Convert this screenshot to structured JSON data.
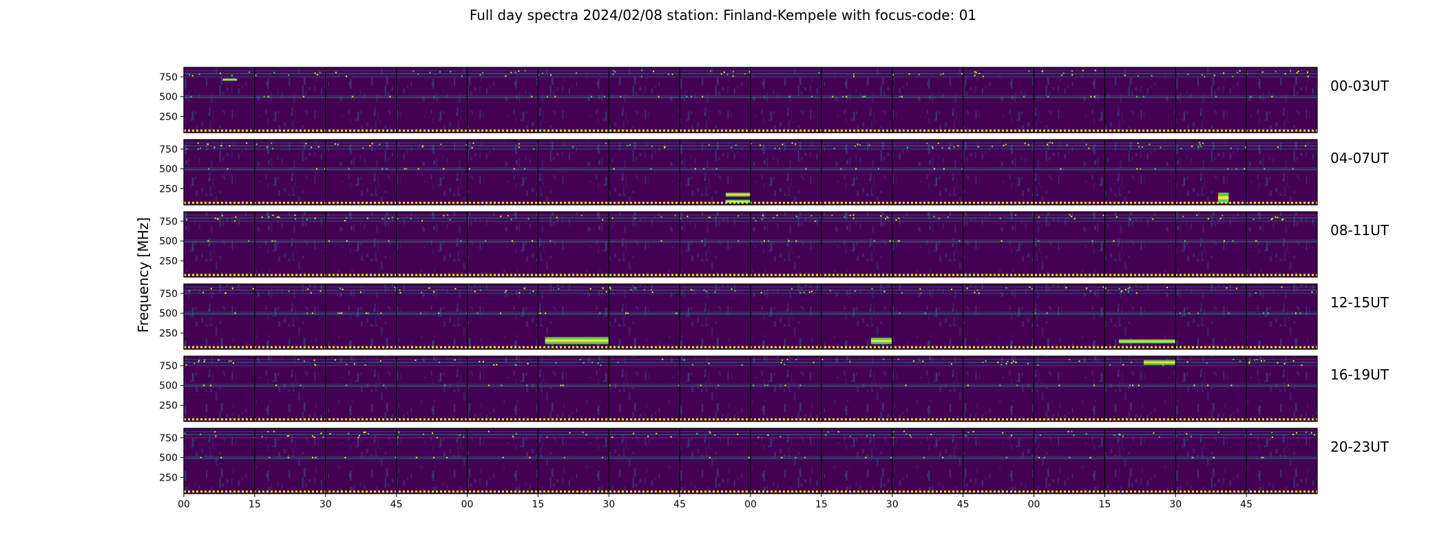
{
  "chart_data": {
    "type": "heatmap",
    "title": "Full day spectra 2024/02/08 station: Finland-Kempele with focus-code: 01",
    "ylabel": "Frequency [MHz]",
    "xlabel": "",
    "y_ticks": [
      750,
      500,
      250
    ],
    "y_range_mhz": [
      45,
      870
    ],
    "x_tick_labels": [
      "00",
      "15",
      "30",
      "45",
      "00",
      "15",
      "30",
      "45",
      "00",
      "15",
      "30",
      "45",
      "00",
      "15",
      "30",
      "45"
    ],
    "panels_per_row": 16,
    "minutes_per_panel": 15,
    "rows": [
      {
        "label": "00-03UT",
        "bursts": [
          {
            "panel": 0,
            "t0": 0.55,
            "t1": 0.75,
            "f0": 700,
            "f1": 730
          }
        ]
      },
      {
        "label": "04-07UT",
        "bursts": [
          {
            "panel": 7,
            "t0": 0.65,
            "t1": 1.0,
            "f0": 150,
            "f1": 200
          },
          {
            "panel": 7,
            "t0": 0.65,
            "t1": 1.0,
            "f0": 70,
            "f1": 110
          },
          {
            "panel": 14,
            "t0": 0.6,
            "t1": 0.75,
            "f0": 70,
            "f1": 200
          }
        ]
      },
      {
        "label": "08-11UT",
        "bursts": []
      },
      {
        "label": "12-15UT",
        "bursts": [
          {
            "panel": 5,
            "t0": 0.1,
            "t1": 1.0,
            "f0": 110,
            "f1": 200
          },
          {
            "panel": 9,
            "t0": 0.7,
            "t1": 1.0,
            "f0": 110,
            "f1": 190
          },
          {
            "panel": 13,
            "t0": 0.2,
            "t1": 1.0,
            "f0": 120,
            "f1": 170
          }
        ]
      },
      {
        "label": "16-19UT",
        "bursts": [
          {
            "panel": 13,
            "t0": 0.55,
            "t1": 1.0,
            "f0": 760,
            "f1": 820
          }
        ]
      },
      {
        "label": "20-23UT",
        "bursts": []
      }
    ],
    "notes": [
      "Horizontal interference bands near 500 MHz and 750-850 MHz in all panels",
      "Dotted calibration line at the bottom of every row"
    ],
    "colormap": [
      "#440154",
      "#3b528b",
      "#21918c",
      "#5ec962",
      "#fde725"
    ]
  }
}
